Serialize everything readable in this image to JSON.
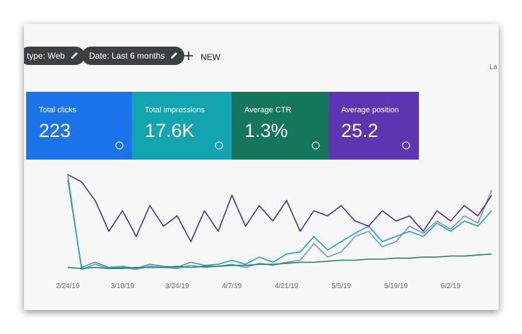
{
  "filters": [
    {
      "label": "type: Web"
    },
    {
      "label": "Date: Last 6 months"
    }
  ],
  "new_button": "NEW",
  "corner_text": "La",
  "metrics": [
    {
      "label": "Total clicks",
      "value": "223"
    },
    {
      "label": "Total impressions",
      "value": "17.6K"
    },
    {
      "label": "Average CTR",
      "value": "1.3%"
    },
    {
      "label": "Average position",
      "value": "25.2"
    }
  ],
  "chart_data": {
    "type": "line",
    "categories": [
      "2/24/19",
      null,
      null,
      null,
      "3/10/19",
      null,
      null,
      null,
      "3/24/19",
      null,
      null,
      null,
      "4/7/19",
      null,
      null,
      null,
      "4/21/19",
      null,
      null,
      null,
      "5/5/19",
      null,
      null,
      null,
      "5/19/19",
      null,
      null,
      null,
      "6/2/19",
      null,
      null,
      null
    ],
    "ylim": [
      0,
      100
    ],
    "series": [
      {
        "color": "#7b8fd6",
        "values": [
          95,
          3,
          8,
          4,
          5,
          3,
          6,
          5,
          4,
          7,
          5,
          6,
          8,
          5,
          9,
          7,
          10,
          12,
          28,
          15,
          20,
          35,
          40,
          25,
          30,
          45,
          38,
          50,
          42,
          55,
          48,
          80
        ]
      },
      {
        "color": "#1ba5b0",
        "values": [
          90,
          5,
          10,
          5,
          6,
          4,
          8,
          6,
          5,
          10,
          7,
          8,
          12,
          8,
          15,
          10,
          18,
          20,
          35,
          22,
          30,
          38,
          45,
          30,
          35,
          40,
          35,
          48,
          40,
          50,
          45,
          60
        ]
      },
      {
        "color": "#1e8a5c",
        "values": [
          5,
          4,
          5,
          4,
          4,
          5,
          5,
          5,
          6,
          5,
          6,
          6,
          7,
          7,
          8,
          8,
          9,
          10,
          10,
          11,
          12,
          12,
          13,
          13,
          14,
          14,
          15,
          15,
          16,
          16,
          17,
          18
        ]
      },
      {
        "color": "#4a2fa0",
        "values": [
          95,
          88,
          70,
          40,
          60,
          35,
          65,
          45,
          55,
          30,
          60,
          40,
          75,
          45,
          65,
          50,
          70,
          40,
          60,
          55,
          65,
          50,
          45,
          60,
          50,
          55,
          40,
          60,
          50,
          65,
          55,
          75
        ]
      }
    ]
  }
}
